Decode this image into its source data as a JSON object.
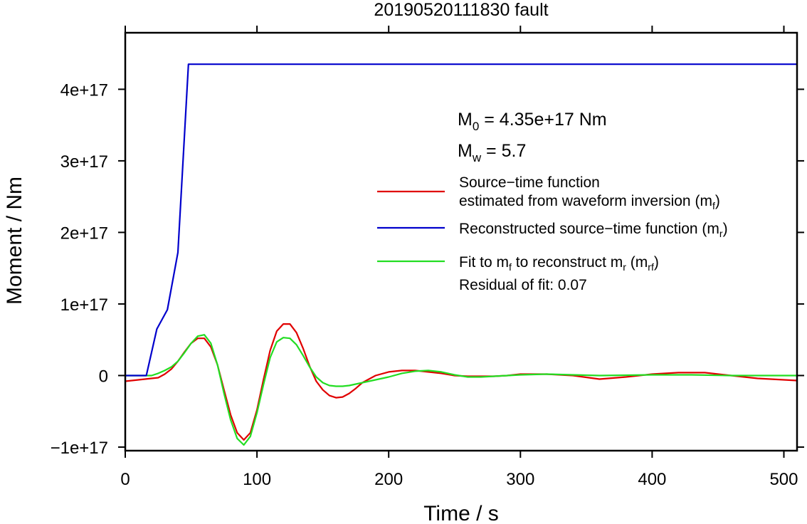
{
  "chart_data": {
    "type": "line",
    "title": "20190520111830 fault",
    "xlabel": "Time / s",
    "ylabel": "Moment / Nm",
    "xlim": [
      0,
      510
    ],
    "ylim": [
      -1.05e+17,
      4.79e+17
    ],
    "x_ticks": [
      0,
      100,
      200,
      300,
      400,
      500
    ],
    "x_tick_labels": [
      "0",
      "100",
      "200",
      "300",
      "400",
      "500"
    ],
    "y_ticks": [
      -1e+17,
      0,
      1e+17,
      2e+17,
      3e+17,
      4e+17
    ],
    "y_tick_labels": [
      "−1e+17",
      "0",
      "1e+17",
      "2e+17",
      "3e+17",
      "4e+17"
    ],
    "grid": false,
    "legend_placement": "right",
    "annotations": {
      "m0": {
        "sym": "M",
        "sub": "0",
        "rest": " = 4.35e+17 Nm"
      },
      "mw": {
        "sym": "M",
        "sub": "w",
        "rest": " = 5.7"
      },
      "residual": "Residual of fit: 0.07"
    },
    "series": [
      {
        "legend_lines": [
          {
            "text": "Source−time function"
          },
          {
            "text": "estimated from waveform inversion (m",
            "sub": "f",
            "after": ")"
          }
        ],
        "color": "#e00000",
        "x": [
          0,
          10,
          20,
          25,
          30,
          35,
          40,
          45,
          50,
          55,
          60,
          65,
          70,
          75,
          80,
          85,
          90,
          95,
          100,
          105,
          110,
          115,
          120,
          125,
          130,
          135,
          140,
          145,
          150,
          155,
          160,
          165,
          170,
          175,
          180,
          190,
          200,
          210,
          220,
          230,
          240,
          250,
          260,
          270,
          280,
          290,
          300,
          320,
          340,
          360,
          380,
          400,
          420,
          440,
          460,
          480,
          510
        ],
        "y": [
          -8000000000000000.0,
          -6000000000000000.0,
          -4000000000000000.0,
          -3000000000000000.0,
          2000000000000000.0,
          9000000000000000.0,
          2e+16,
          3.3e+16,
          4.5e+16,
          5.2e+16,
          5.2e+16,
          4e+16,
          1.5e+16,
          -2e+16,
          -5.5e+16,
          -8e+16,
          -9e+16,
          -8e+16,
          -4.8e+16,
          -5000000000000000.0,
          3.5e+16,
          6.2e+16,
          7.2e+16,
          7.2e+16,
          6e+16,
          3.8e+16,
          1.3e+16,
          -8000000000000000.0,
          -2e+16,
          -2.8e+16,
          -3.1e+16,
          -3e+16,
          -2.5e+16,
          -1.8e+16,
          -1e+16,
          0.0,
          5000000000000000.0,
          7000000000000000.0,
          7000000000000000.0,
          5000000000000000.0,
          3000000000000000.0,
          0.0,
          -1000000000000000.0,
          -1000000000000000.0,
          -1000000000000000.0,
          0.0,
          2000000000000000.0,
          2000000000000000.0,
          0.0,
          -5000000000000000.0,
          -2000000000000000.0,
          2000000000000000.0,
          4000000000000000.0,
          4000000000000000.0,
          0.0,
          -4000000000000000.0,
          -7000000000000000.0
        ]
      },
      {
        "legend_lines": [
          {
            "text": "Reconstructed source−time function (m",
            "sub": "r",
            "after": ")"
          }
        ],
        "color": "#0000cc",
        "x": [
          0,
          16,
          24,
          32,
          40,
          48,
          510
        ],
        "y": [
          0,
          0,
          6.5e+16,
          9.2e+16,
          1.72e+17,
          4.35e+17,
          4.35e+17
        ]
      },
      {
        "legend_lines": [
          {
            "text": "Fit to m",
            "sub": "f",
            "after": " to reconstruct m",
            "sub2": "r",
            "after2": " (m",
            "sub3": "rf",
            "after3": ")"
          }
        ],
        "color": "#22dd22",
        "x": [
          0,
          15,
          20,
          25,
          30,
          35,
          40,
          45,
          50,
          55,
          60,
          65,
          70,
          75,
          80,
          85,
          90,
          95,
          100,
          105,
          110,
          115,
          120,
          125,
          130,
          135,
          140,
          145,
          150,
          155,
          160,
          165,
          170,
          175,
          180,
          190,
          200,
          210,
          220,
          230,
          240,
          250,
          260,
          270,
          280,
          300,
          320,
          340,
          360,
          400,
          430,
          460,
          510
        ],
        "y": [
          0,
          0,
          0.0,
          3000000000000000.0,
          7000000000000000.0,
          1.2e+16,
          2e+16,
          3.2e+16,
          4.5e+16,
          5.5e+16,
          5.7e+16,
          4.5e+16,
          1.5e+16,
          -2.5e+16,
          -6.2e+16,
          -8.8e+16,
          -9.7e+16,
          -8.5e+16,
          -5.2e+16,
          -1.2e+16,
          2.5e+16,
          4.7e+16,
          5.3e+16,
          5.2e+16,
          4.3e+16,
          2.8e+16,
          1.2e+16,
          -2000000000000000.0,
          -1e+16,
          -1.4e+16,
          -1.5e+16,
          -1.5e+16,
          -1.4e+16,
          -1.2e+16,
          -1e+16,
          -6000000000000000.0,
          -2000000000000000.0,
          3000000000000000.0,
          6000000000000000.0,
          7000000000000000.0,
          5000000000000000.0,
          1000000000000000.0,
          -2000000000000000.0,
          -2000000000000000.0,
          -1000000000000000.0,
          1000000000000000.0,
          2000000000000000.0,
          1000000000000000.0,
          0.0,
          1000000000000000.0,
          1000000000000000.0,
          0.0,
          0.0
        ]
      }
    ]
  }
}
